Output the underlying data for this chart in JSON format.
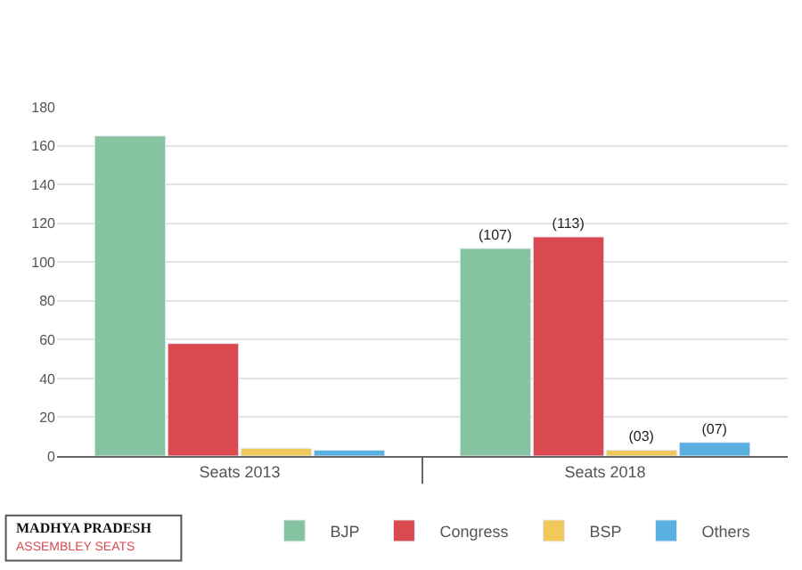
{
  "chart_data": {
    "type": "bar",
    "title": "MADHYA PRADESH",
    "subtitle": "ASSEMBLEY SEATS",
    "categories": [
      "Seats 2013",
      "Seats 2018"
    ],
    "series": [
      {
        "name": "BJP",
        "color": "#86c3a0",
        "values": [
          165,
          107
        ],
        "value_labels": [
          null,
          "(107)"
        ]
      },
      {
        "name": "Congress",
        "color": "#d9494f",
        "values": [
          58,
          113
        ],
        "value_labels": [
          null,
          "(113)"
        ]
      },
      {
        "name": "BSP",
        "color": "#f0c95a",
        "values": [
          4,
          3
        ],
        "value_labels": [
          null,
          "(03)"
        ]
      },
      {
        "name": "Others",
        "color": "#5ab0e0",
        "values": [
          3,
          7
        ],
        "value_labels": [
          null,
          "(07)"
        ]
      }
    ],
    "ylim": [
      0,
      180
    ],
    "yticks": [
      0,
      20,
      40,
      60,
      80,
      100,
      120,
      140,
      160,
      180
    ],
    "grid": "y",
    "legend": "bottom"
  }
}
